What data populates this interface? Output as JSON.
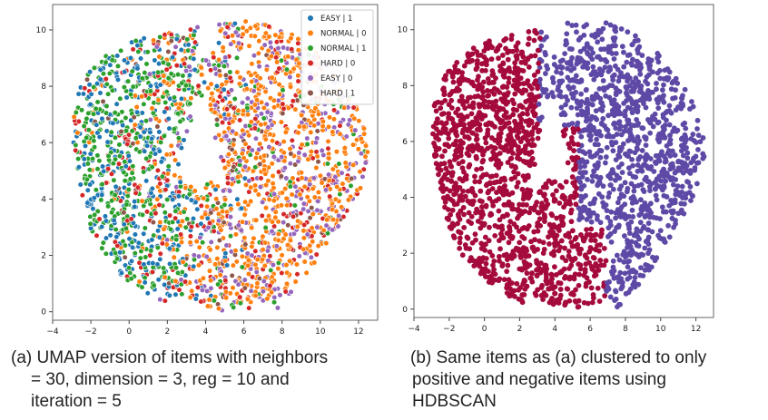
{
  "chart_data": [
    {
      "type": "scatter",
      "title": "",
      "xlabel": "",
      "ylabel": "",
      "xlim": [
        -4,
        13
      ],
      "ylim": [
        -0.3,
        10.9
      ],
      "x_ticks": [
        "−4",
        "−2",
        "0",
        "2",
        "4",
        "6",
        "8",
        "10",
        "12"
      ],
      "y_ticks": [
        "0",
        "2",
        "4",
        "6",
        "8",
        "10"
      ],
      "grid": false,
      "legend_position": "top-right",
      "series": [
        {
          "name": "EASY | 1",
          "color": "#1f77b4"
        },
        {
          "name": "NORMAL | 0",
          "color": "#ff7f0e"
        },
        {
          "name": "NORMAL | 1",
          "color": "#2ca02c"
        },
        {
          "name": "HARD | 0",
          "color": "#d62728"
        },
        {
          "name": "EASY | 0",
          "color": "#9467bd"
        },
        {
          "name": "HARD | 1",
          "color": "#8c564b"
        }
      ]
    },
    {
      "type": "scatter",
      "title": "",
      "xlabel": "",
      "ylabel": "",
      "xlim": [
        -4,
        13
      ],
      "ylim": [
        -0.3,
        10.9
      ],
      "x_ticks": [
        "−4",
        "−2",
        "0",
        "2",
        "4",
        "6",
        "8",
        "10",
        "12"
      ],
      "y_ticks": [
        "0",
        "2",
        "4",
        "6",
        "8",
        "10"
      ],
      "grid": false,
      "series": [
        {
          "color": "#a50a3c"
        },
        {
          "color": "#5e4aa6"
        }
      ]
    }
  ],
  "captions": {
    "a": [
      "(a) UMAP version of items with neighbors",
      "= 30, dimension = 3, reg = 10 and",
      "iteration = 5"
    ],
    "b": [
      "(b) Same items as (a) clustered to only",
      "positive and negative items using",
      "HDBSCAN"
    ]
  }
}
